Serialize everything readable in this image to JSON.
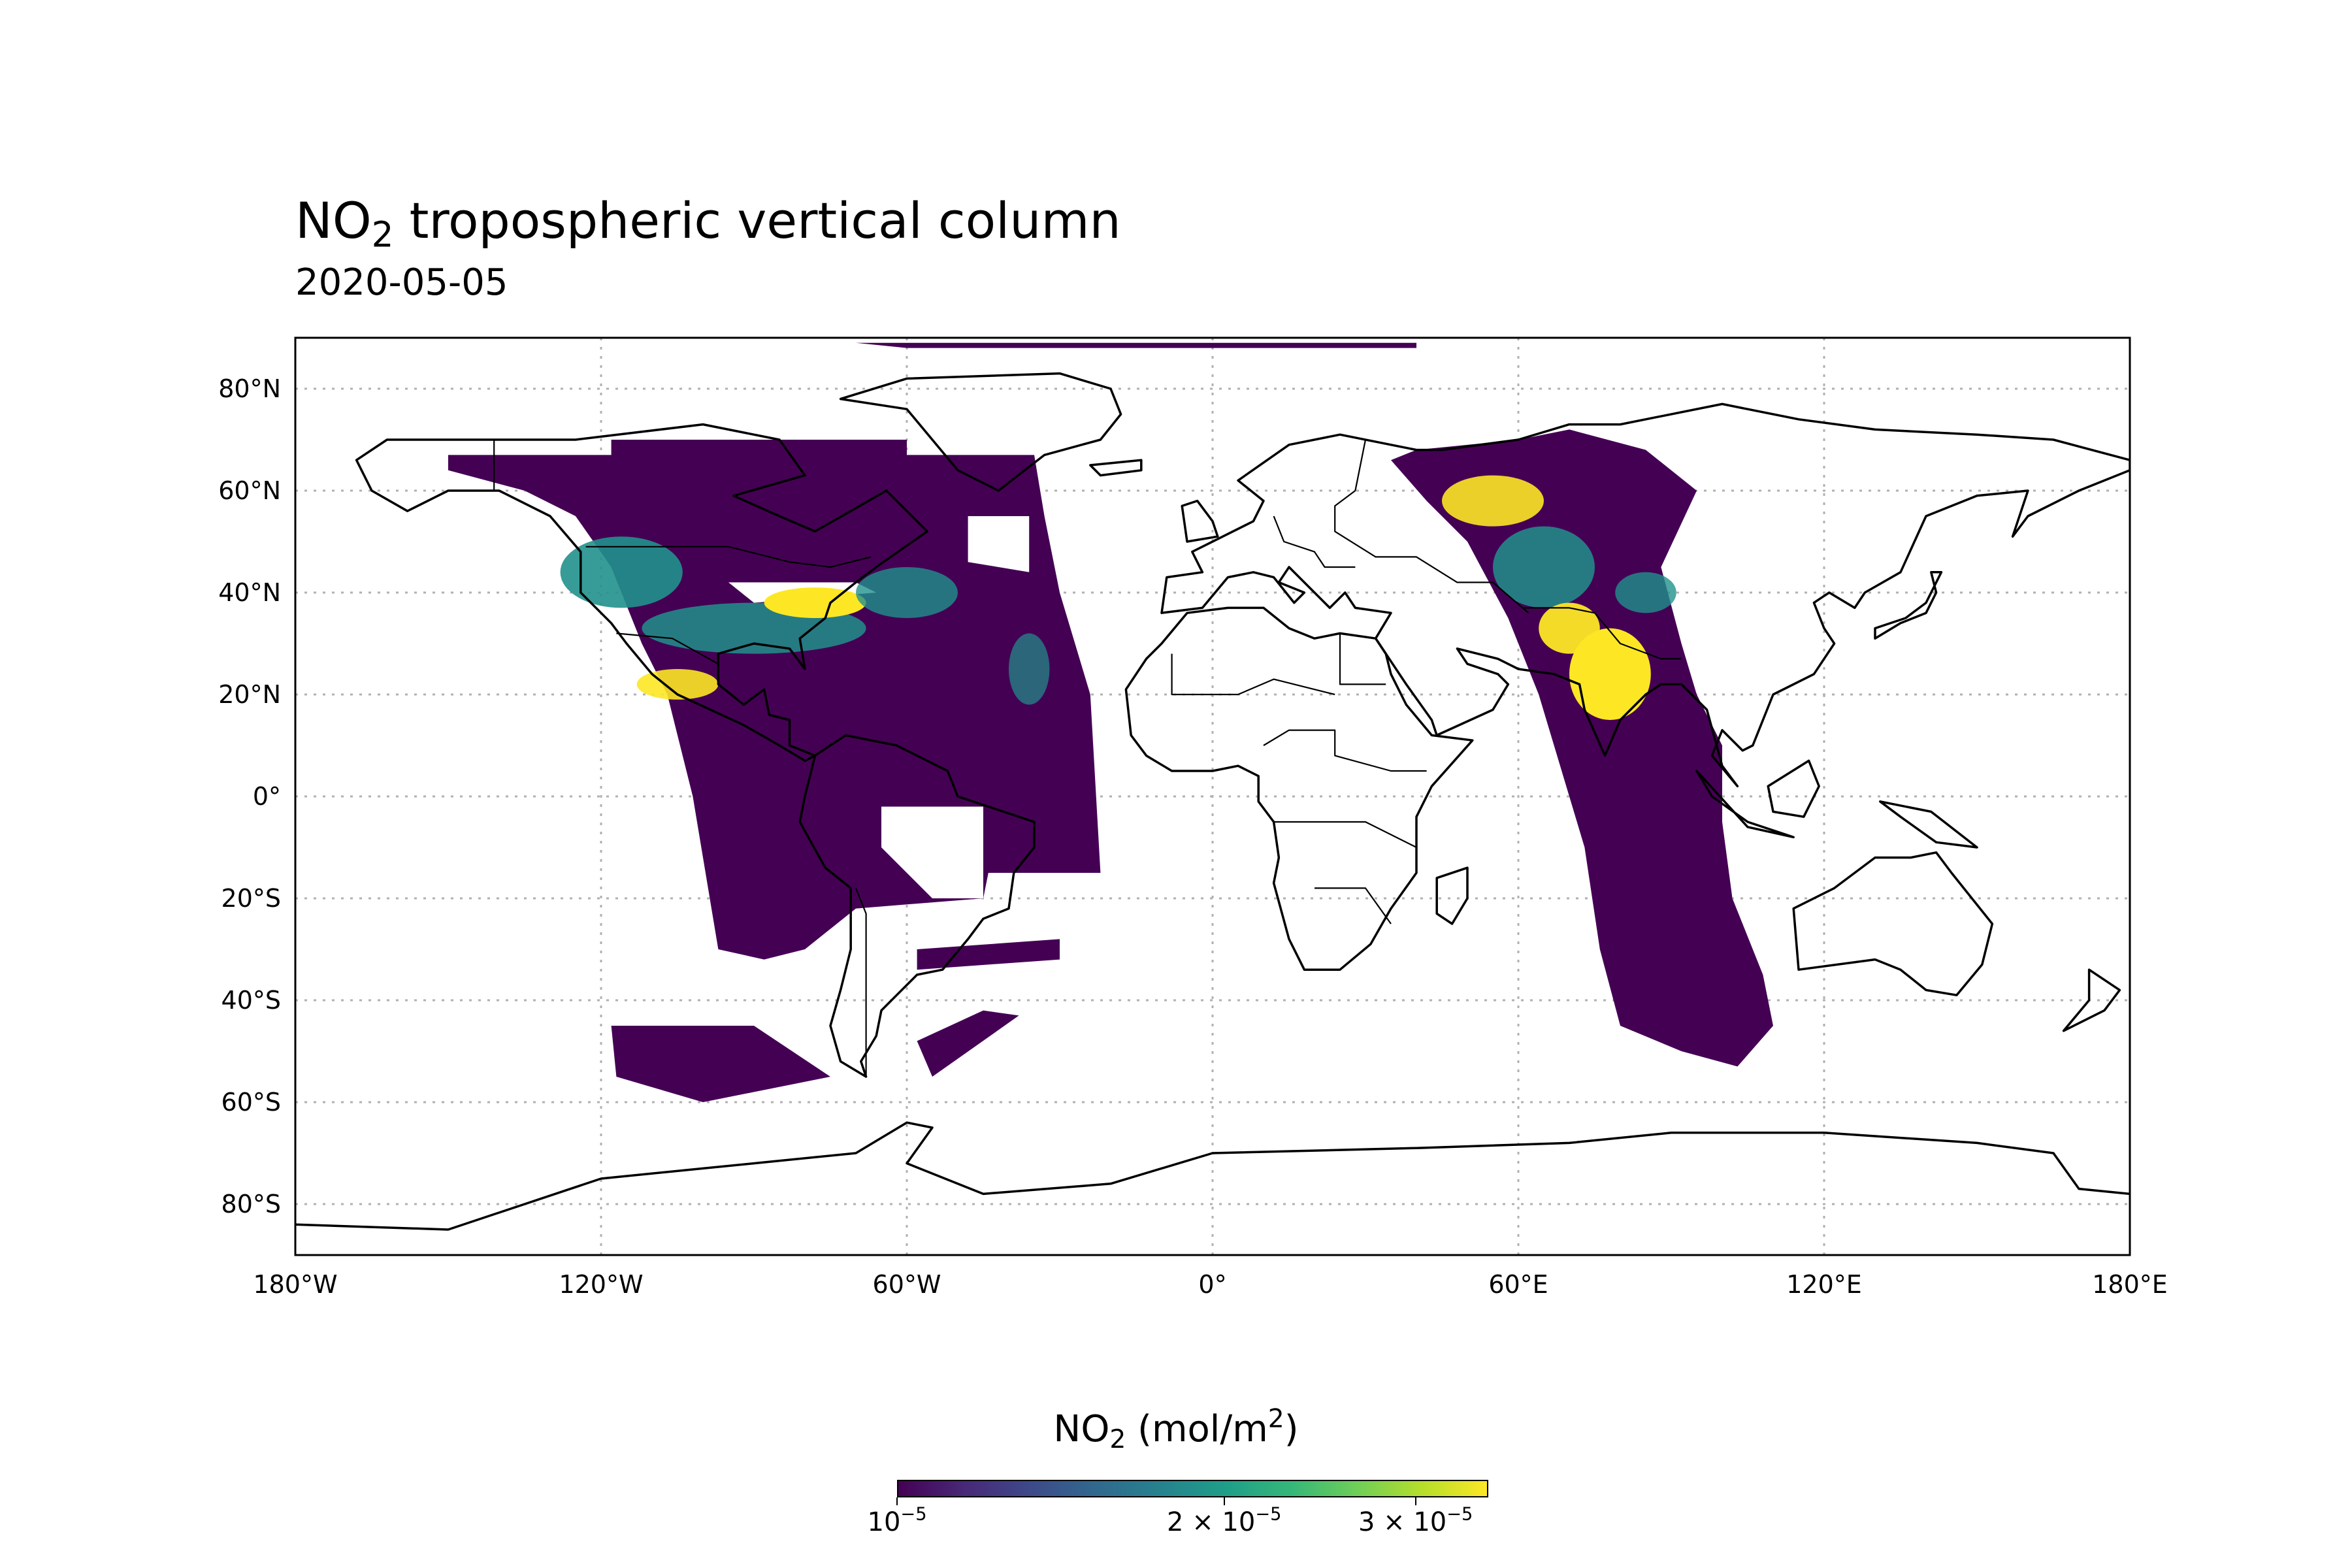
{
  "title": {
    "prefix": "NO",
    "sub": "2",
    "rest": " tropospheric vertical column"
  },
  "subtitle": "2020-05-05",
  "map": {
    "projection": "PlateCarree",
    "x_ticks": [
      "180°W",
      "120°W",
      "60°W",
      "0°",
      "60°E",
      "120°E",
      "180°E"
    ],
    "y_ticks": [
      "80°N",
      "60°N",
      "40°N",
      "20°N",
      "0°",
      "20°S",
      "40°S",
      "60°S",
      "80°S"
    ],
    "gridlines": true,
    "coastlines": true,
    "borders": true
  },
  "colorbar": {
    "label_prefix": "NO",
    "label_sub": "2",
    "label_mid": " (mol/m",
    "label_sup": "2",
    "label_end": ")",
    "colormap": "viridis",
    "scale": "log",
    "range": [
      1e-05,
      3.5e-05
    ],
    "ticks": [
      {
        "base": "10",
        "exp": "−5",
        "value": 1e-05
      },
      {
        "base": "2 × 10",
        "exp": "−5",
        "value": 2e-05
      },
      {
        "base": "3 × 10",
        "exp": "−5",
        "value": 3e-05
      }
    ]
  },
  "colors": {
    "low": "#440154",
    "mid": "#21918c",
    "high": "#fde725"
  }
}
